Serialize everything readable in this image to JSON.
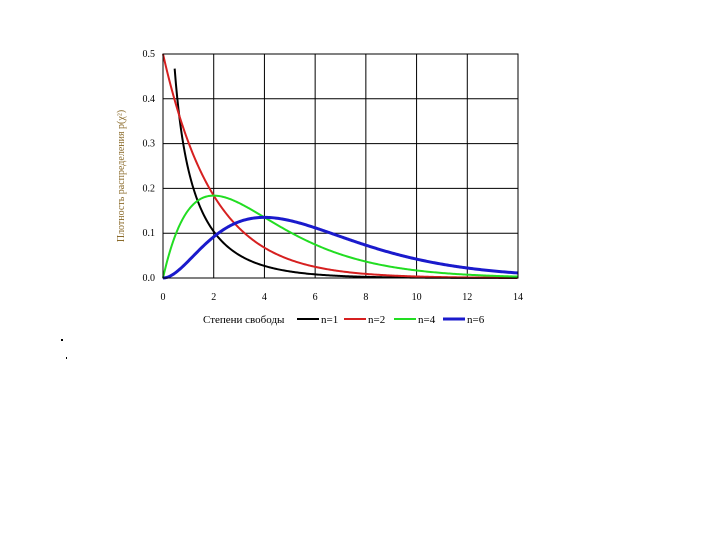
{
  "chart_data": {
    "type": "line",
    "ylabel": "Плотность распределения p(χ²)",
    "xlabel": "Степени свободы",
    "xlim": [
      0,
      14
    ],
    "ylim": [
      0,
      0.5
    ],
    "x_ticks": [
      "0",
      "2",
      "4",
      "6",
      "8",
      "10",
      "12",
      "14"
    ],
    "y_ticks": [
      "0.0",
      "0.1",
      "0.2",
      "0.3",
      "0.4",
      "0.5"
    ],
    "grid": true,
    "legend_position": "bottom",
    "series": [
      {
        "name": "n=1",
        "color": "#000000",
        "df": 1
      },
      {
        "name": "n=2",
        "color": "#d62020",
        "df": 2
      },
      {
        "name": "n=4",
        "color": "#22dd22",
        "df": 4
      },
      {
        "name": "n=6",
        "color": "#1a1acc",
        "df": 6
      }
    ]
  },
  "bullets": [
    "•",
    "•"
  ]
}
